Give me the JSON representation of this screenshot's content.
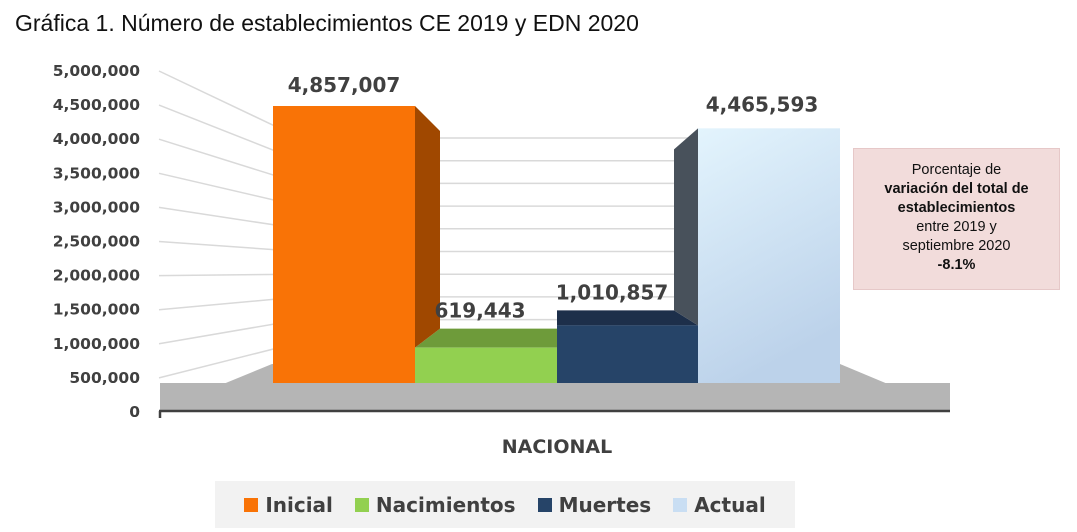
{
  "chart_data": {
    "type": "bar",
    "title": "Gráfica 1. Número de establecimientos CE 2019 y EDN 2020",
    "xlabel": "NACIONAL",
    "ylabel": "",
    "ylim": [
      0,
      5000000
    ],
    "yticks": [
      "0",
      "500,000",
      "1,000,000",
      "1,500,000",
      "2,000,000",
      "2,500,000",
      "3,000,000",
      "3,500,000",
      "4,000,000",
      "4,500,000",
      "5,000,000"
    ],
    "categories": [
      "NACIONAL"
    ],
    "series": [
      {
        "name": "Inicial",
        "values": [
          4857007
        ],
        "label": "4,857,007",
        "color": "#f97306"
      },
      {
        "name": "Nacimientos",
        "values": [
          619443
        ],
        "label": "619,443",
        "color": "#92d050"
      },
      {
        "name": "Muertes",
        "values": [
          1010857
        ],
        "label": "1,010,857",
        "color": "#264468"
      },
      {
        "name": "Actual",
        "values": [
          4465593
        ],
        "label": "4,465,593",
        "color": "#c9def3"
      }
    ],
    "legend_position": "bottom",
    "grid": true,
    "three_d": true
  },
  "note": {
    "line1": "Porcentaje de",
    "bold1": "variación del total de",
    "bold2": "establecimientos",
    "line2": "entre 2019 y",
    "line3": "septiembre 2020",
    "value": "-8.1%"
  }
}
